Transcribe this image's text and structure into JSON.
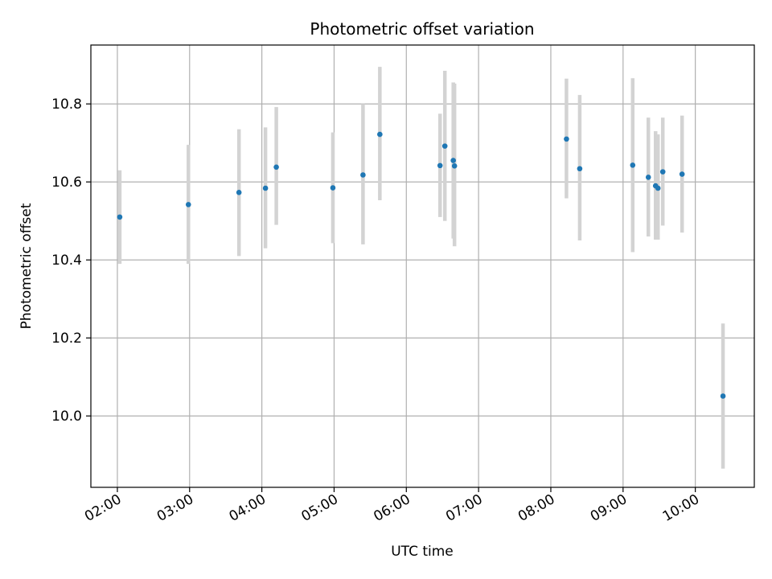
{
  "chart_data": {
    "type": "scatter",
    "title": "Photometric offset variation",
    "xlabel": "UTC time",
    "ylabel": "Photometric offset",
    "xlim": [
      "01:38",
      "10:49"
    ],
    "ylim": [
      9.817,
      10.951
    ],
    "x_ticks": [
      "02:00",
      "03:00",
      "04:00",
      "05:00",
      "06:00",
      "07:00",
      "08:00",
      "09:00",
      "10:00"
    ],
    "y_ticks": [
      10.0,
      10.2,
      10.4,
      10.6,
      10.8
    ],
    "grid": true,
    "colors": {
      "point": "#1f77b4",
      "errorbar": "#d3d3d3",
      "grid": "#b0b0b0"
    },
    "points": [
      {
        "x": "02:02",
        "y": 10.51,
        "yerr_low": 10.39,
        "yerr_high": 10.63
      },
      {
        "x": "02:59",
        "y": 10.542,
        "yerr_low": 10.39,
        "yerr_high": 10.695
      },
      {
        "x": "03:41",
        "y": 10.573,
        "yerr_low": 10.41,
        "yerr_high": 10.735
      },
      {
        "x": "04:03",
        "y": 10.584,
        "yerr_low": 10.43,
        "yerr_high": 10.74
      },
      {
        "x": "04:12",
        "y": 10.638,
        "yerr_low": 10.49,
        "yerr_high": 10.792
      },
      {
        "x": "04:59",
        "y": 10.585,
        "yerr_low": 10.443,
        "yerr_high": 10.727
      },
      {
        "x": "05:24",
        "y": 10.618,
        "yerr_low": 10.44,
        "yerr_high": 10.8
      },
      {
        "x": "05:38",
        "y": 10.722,
        "yerr_low": 10.553,
        "yerr_high": 10.895
      },
      {
        "x": "06:28",
        "y": 10.642,
        "yerr_low": 10.51,
        "yerr_high": 10.775
      },
      {
        "x": "06:32",
        "y": 10.692,
        "yerr_low": 10.5,
        "yerr_high": 10.885
      },
      {
        "x": "06:39",
        "y": 10.655,
        "yerr_low": 10.455,
        "yerr_high": 10.855
      },
      {
        "x": "06:40",
        "y": 10.641,
        "yerr_low": 10.435,
        "yerr_high": 10.852
      },
      {
        "x": "08:13",
        "y": 10.71,
        "yerr_low": 10.558,
        "yerr_high": 10.865
      },
      {
        "x": "08:24",
        "y": 10.634,
        "yerr_low": 10.45,
        "yerr_high": 10.823
      },
      {
        "x": "09:08",
        "y": 10.643,
        "yerr_low": 10.42,
        "yerr_high": 10.866
      },
      {
        "x": "09:21",
        "y": 10.612,
        "yerr_low": 10.46,
        "yerr_high": 10.765
      },
      {
        "x": "09:27",
        "y": 10.59,
        "yerr_low": 10.452,
        "yerr_high": 10.73
      },
      {
        "x": "09:29",
        "y": 10.584,
        "yerr_low": 10.452,
        "yerr_high": 10.722
      },
      {
        "x": "09:33",
        "y": 10.626,
        "yerr_low": 10.488,
        "yerr_high": 10.765
      },
      {
        "x": "09:49",
        "y": 10.62,
        "yerr_low": 10.47,
        "yerr_high": 10.77
      },
      {
        "x": "10:23",
        "y": 10.051,
        "yerr_low": 9.865,
        "yerr_high": 10.237
      }
    ]
  }
}
